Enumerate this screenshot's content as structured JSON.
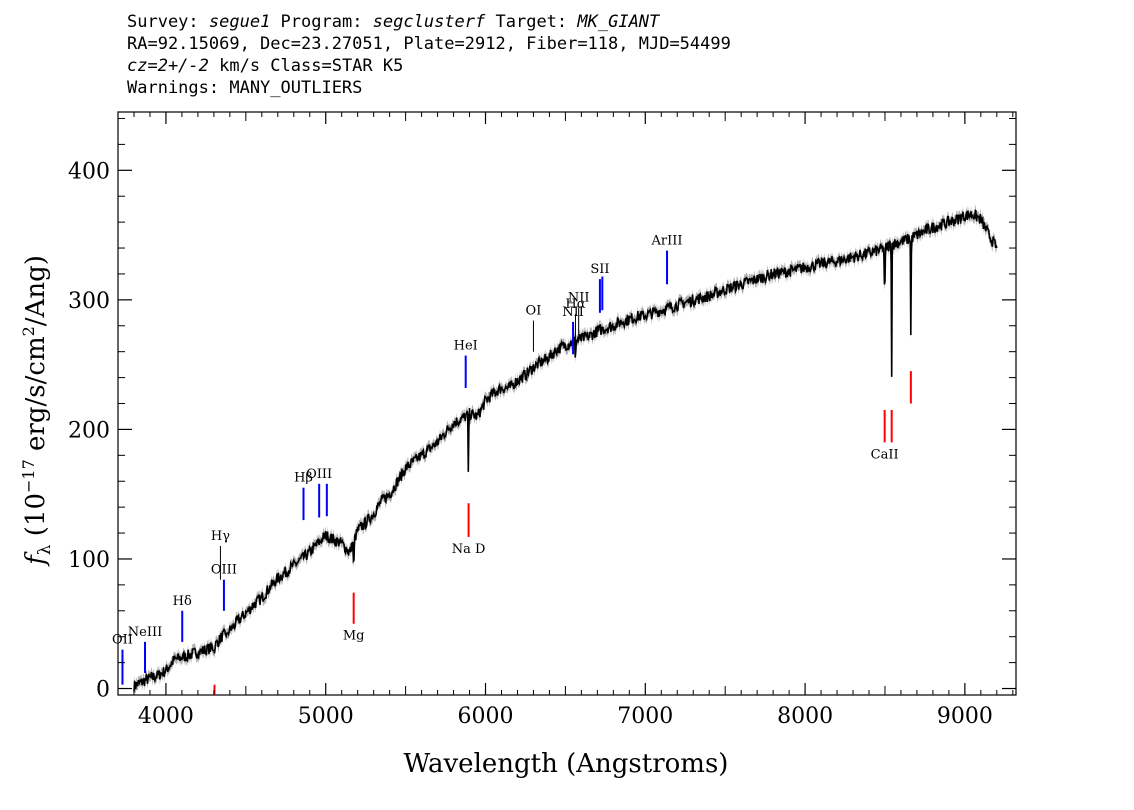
{
  "header": {
    "survey_label": "Survey: ",
    "survey": "segue1",
    "program_label": " Program: ",
    "program": "segclusterf",
    "target_label": " Target: ",
    "target": "MK_GIANT",
    "line2": "RA=92.15069, Dec=23.27051, Plate=2912, Fiber=118, MJD=54499",
    "cz": "cz=2+/-2",
    "line3_rest": " km/s Class=STAR K5",
    "line4": "Warnings: MANY_OUTLIERS"
  },
  "colors": {
    "emission": "#0000ff",
    "absorption": "#ff0000",
    "neutral": "#000000",
    "spectrum": "#000000",
    "error_band": "#b0b0b0"
  },
  "chart_data": {
    "type": "line",
    "xlabel": "Wavelength (Angstroms)",
    "ylabel_prefix": "f",
    "ylabel_sub": "λ",
    "ylabel_open": " (10",
    "ylabel_exp": "−17",
    "ylabel_mid": " erg/s/cm",
    "ylabel_exp2": "2",
    "ylabel_close": "/Ang)",
    "xlim": [
      3700,
      9320
    ],
    "ylim": [
      -5,
      445
    ],
    "xticks": [
      4000,
      5000,
      6000,
      7000,
      8000,
      9000
    ],
    "xtick_labels": [
      "4000",
      "5000",
      "6000",
      "7000",
      "8000",
      "9000"
    ],
    "yticks": [
      0,
      100,
      200,
      300,
      400
    ],
    "ytick_labels": [
      "0",
      "100",
      "200",
      "300",
      "400"
    ],
    "spectrum": {
      "x": [
        3800,
        3850,
        3900,
        3950,
        4000,
        4050,
        4100,
        4150,
        4200,
        4250,
        4300,
        4350,
        4400,
        4450,
        4500,
        4550,
        4600,
        4650,
        4700,
        4750,
        4800,
        4850,
        4900,
        4950,
        5000,
        5050,
        5100,
        5150,
        5200,
        5250,
        5300,
        5350,
        5400,
        5450,
        5500,
        5550,
        5600,
        5650,
        5700,
        5750,
        5800,
        5850,
        5900,
        5950,
        6000,
        6050,
        6100,
        6150,
        6200,
        6250,
        6300,
        6350,
        6400,
        6450,
        6500,
        6550,
        6600,
        6650,
        6700,
        6750,
        6800,
        6850,
        6900,
        6950,
        7000,
        7100,
        7200,
        7300,
        7400,
        7500,
        7600,
        7700,
        7800,
        7900,
        8000,
        8100,
        8200,
        8300,
        8400,
        8450,
        8500,
        8550,
        8600,
        8650,
        8700,
        8750,
        8800,
        8850,
        8900,
        8950,
        9000,
        9050,
        9100,
        9150,
        9200
      ],
      "y": [
        2,
        5,
        8,
        10,
        14,
        22,
        24,
        26,
        28,
        30,
        32,
        40,
        45,
        52,
        58,
        65,
        70,
        78,
        85,
        90,
        95,
        100,
        105,
        112,
        118,
        115,
        112,
        105,
        122,
        128,
        135,
        145,
        150,
        160,
        170,
        175,
        180,
        185,
        190,
        198,
        205,
        208,
        212,
        210,
        222,
        228,
        232,
        232,
        238,
        242,
        248,
        252,
        256,
        262,
        265,
        268,
        270,
        272,
        276,
        278,
        280,
        283,
        285,
        287,
        288,
        292,
        296,
        300,
        303,
        308,
        312,
        316,
        320,
        322,
        325,
        328,
        330,
        333,
        336,
        338,
        340,
        343,
        345,
        347,
        350,
        353,
        356,
        358,
        360,
        362,
        365,
        366,
        362,
        350,
        340
      ]
    },
    "absorption_dips": [
      {
        "x": 4305,
        "y": 25
      },
      {
        "x": 4383,
        "y": 42
      },
      {
        "x": 5175,
        "y": 85
      },
      {
        "x": 5893,
        "y": 158
      },
      {
        "x": 6563,
        "y": 248
      },
      {
        "x": 8498,
        "y": 288
      },
      {
        "x": 8542,
        "y": 232
      },
      {
        "x": 8662,
        "y": 263
      }
    ],
    "line_markers": [
      {
        "label": "OII",
        "x": 3728,
        "y_bottom": 3,
        "y_top": 30,
        "color": "emission"
      },
      {
        "label": "NeIII",
        "x": 3869,
        "y_bottom": 12,
        "y_top": 36,
        "color": "emission"
      },
      {
        "label": "Hδ",
        "x": 4102,
        "y_bottom": 36,
        "y_top": 60,
        "color": "emission"
      },
      {
        "label": "Hγ",
        "x": 4341,
        "y_bottom": 84,
        "y_top": 110,
        "color": "neutral"
      },
      {
        "label": "OIII",
        "x": 4363,
        "y_bottom": 60,
        "y_top": 84,
        "color": "emission"
      },
      {
        "label": "Hβ",
        "x": 4861,
        "y_bottom": 130,
        "y_top": 155,
        "color": "emission"
      },
      {
        "label": "OIII",
        "x": 4959,
        "y_bottom": 132,
        "y_top": 158,
        "color": "emission"
      },
      {
        "label": "",
        "x": 5007,
        "y_bottom": 133,
        "y_top": 158,
        "color": "emission"
      },
      {
        "label": "HeI",
        "x": 5876,
        "y_bottom": 232,
        "y_top": 257,
        "color": "emission"
      },
      {
        "label": "OI",
        "x": 6300,
        "y_bottom": 260,
        "y_top": 284,
        "color": "neutral"
      },
      {
        "label": "NII",
        "x": 6548,
        "y_bottom": 258,
        "y_top": 283,
        "color": "emission"
      },
      {
        "label": "Hα",
        "x": 6563,
        "y_bottom": 262,
        "y_top": 289,
        "color": "neutral"
      },
      {
        "label": "NII",
        "x": 6583,
        "y_bottom": 268,
        "y_top": 294,
        "color": "neutral"
      },
      {
        "label": "SII",
        "x": 6716,
        "y_bottom": 290,
        "y_top": 316,
        "color": "emission"
      },
      {
        "label": "",
        "x": 6731,
        "y_bottom": 292,
        "y_top": 318,
        "color": "emission"
      },
      {
        "label": "ArIII",
        "x": 7136,
        "y_bottom": 312,
        "y_top": 338,
        "color": "emission"
      },
      {
        "label": "",
        "x": 4304,
        "y_bottom": -5,
        "y_top": 3,
        "color": "absorption"
      },
      {
        "label": "Mg",
        "x": 5175,
        "y_bottom": 50,
        "y_top": 74,
        "color": "absorption"
      },
      {
        "label": "Na D",
        "x": 5894,
        "y_bottom": 117,
        "y_top": 143,
        "color": "absorption"
      },
      {
        "label": "CaII",
        "x": 8498,
        "y_bottom": 190,
        "y_top": 215,
        "color": "absorption"
      },
      {
        "label": "",
        "x": 8542,
        "y_bottom": 190,
        "y_top": 215,
        "color": "absorption"
      },
      {
        "label": "",
        "x": 8662,
        "y_bottom": 220,
        "y_top": 245,
        "color": "absorption"
      }
    ]
  }
}
